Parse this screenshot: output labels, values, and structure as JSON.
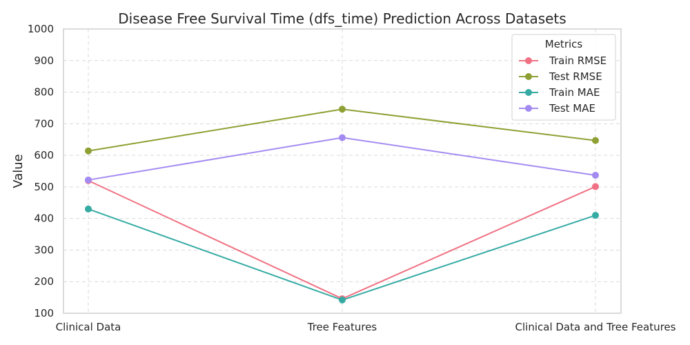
{
  "chart_data": {
    "type": "line",
    "title": "Disease Free Survival Time (dfs_time) Prediction Across Datasets",
    "xlabel": "",
    "ylabel": "Value",
    "categories": [
      "Clinical Data",
      "Tree Features",
      "Clinical Data and Tree Features"
    ],
    "ylim": [
      100,
      1000
    ],
    "yticks": [
      100,
      200,
      300,
      400,
      500,
      600,
      700,
      800,
      900,
      1000
    ],
    "grid": true,
    "legend": {
      "title": "Metrics",
      "placement": "top-right"
    },
    "series": [
      {
        "name": "Train RMSE",
        "color": "#f07183",
        "values": [
          520,
          146,
          501
        ]
      },
      {
        "name": "Test RMSE",
        "color": "#8ea033",
        "values": [
          614,
          746,
          647
        ]
      },
      {
        "name": "Train MAE",
        "color": "#35aba3",
        "values": [
          430,
          142,
          410
        ]
      },
      {
        "name": "Test MAE",
        "color": "#a48bf1",
        "values": [
          522,
          656,
          537
        ]
      }
    ]
  }
}
